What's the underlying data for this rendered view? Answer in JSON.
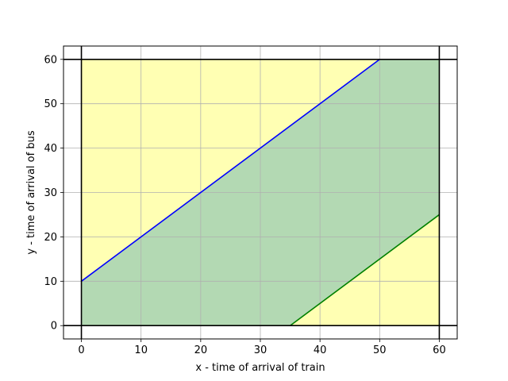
{
  "chart_data": {
    "type": "area",
    "title": "",
    "xlabel": "x - time of arrival of train",
    "ylabel": "y - time of arrival of bus",
    "xlim": [
      -3,
      63
    ],
    "ylim": [
      -3,
      63
    ],
    "xticks": [
      0,
      10,
      20,
      30,
      40,
      50,
      60
    ],
    "yticks": [
      0,
      10,
      20,
      30,
      40,
      50,
      60
    ],
    "grid": true,
    "regions": [
      {
        "label": "",
        "color": "#ffffb3",
        "points": [
          [
            0,
            0
          ],
          [
            60,
            0
          ],
          [
            60,
            60
          ],
          [
            0,
            60
          ]
        ]
      },
      {
        "label": "",
        "color": "#b3d9b3",
        "points": [
          [
            0,
            0
          ],
          [
            35,
            0
          ],
          [
            60,
            25
          ],
          [
            60,
            60
          ],
          [
            50,
            60
          ],
          [
            0,
            10
          ]
        ]
      }
    ],
    "series": [
      {
        "label": "",
        "color": "#0000ff",
        "x": [
          0,
          50
        ],
        "y": [
          10,
          60
        ]
      },
      {
        "label": "",
        "color": "#008000",
        "x": [
          35,
          60
        ],
        "y": [
          0,
          25
        ]
      }
    ],
    "reference_lines": {
      "vertical": [
        0,
        60
      ],
      "horizontal": [
        0,
        60
      ],
      "color": "#000000"
    }
  }
}
